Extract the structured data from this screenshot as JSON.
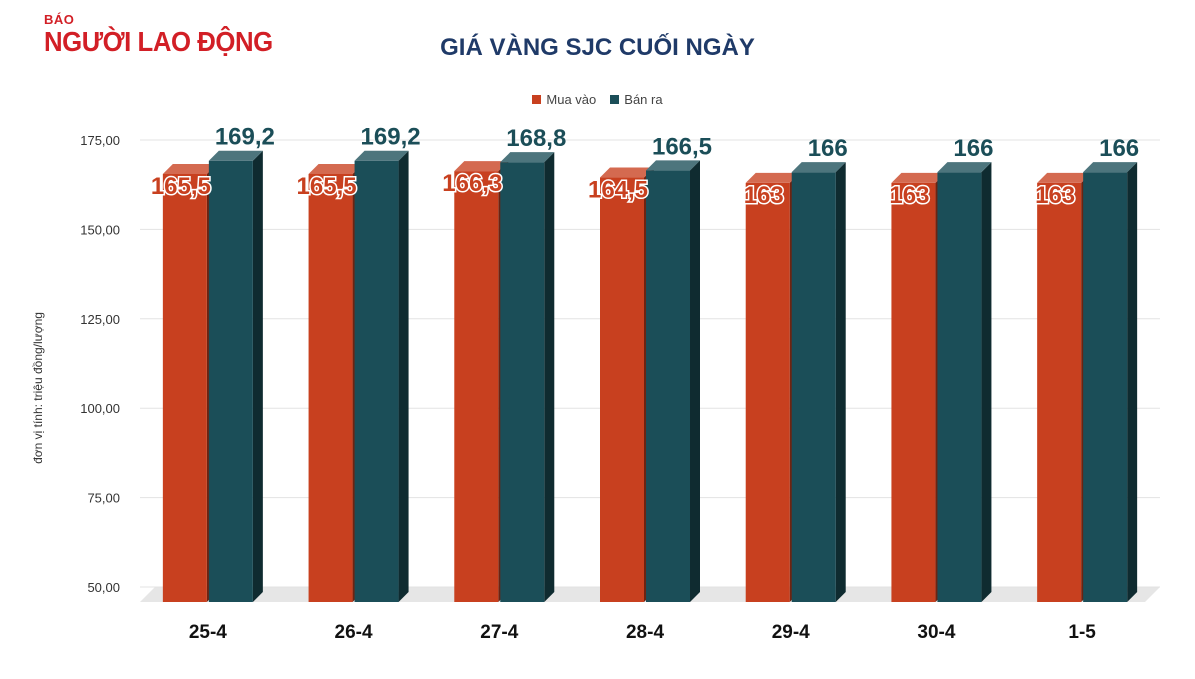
{
  "logo": {
    "small": "BÁO",
    "main": "NGƯỜI LAO ĐỘNG"
  },
  "chart_data": {
    "type": "bar",
    "title": "GIÁ VÀNG SJC CUỐI NGÀY",
    "ylabel": "đơn vị tính: triệu đồng/lượng",
    "xlabel": "",
    "categories": [
      "25-4",
      "26-4",
      "27-4",
      "28-4",
      "29-4",
      "30-4",
      "1-5"
    ],
    "series": [
      {
        "name": "Mua vào",
        "color": "#c8401f",
        "values": [
          165.5,
          165.5,
          166.3,
          164.5,
          163,
          163,
          163
        ],
        "labels": [
          "165,5",
          "165,5",
          "166,3",
          "164,5",
          "163",
          "163",
          "163"
        ]
      },
      {
        "name": "Bán ra",
        "color": "#1b4e58",
        "values": [
          169.2,
          169.2,
          168.8,
          166.5,
          166,
          166,
          166
        ],
        "labels": [
          "169,2",
          "169,2",
          "168,8",
          "166,5",
          "166",
          "166",
          "166"
        ]
      }
    ],
    "ylim": [
      50,
      175
    ],
    "yticks": [
      50,
      75,
      100,
      125,
      150,
      175
    ],
    "ytick_labels": [
      "50,00",
      "75,00",
      "100,00",
      "125,00",
      "150,00",
      "175,00"
    ],
    "grid": true,
    "legend": "top-center",
    "style": "3d-column"
  }
}
